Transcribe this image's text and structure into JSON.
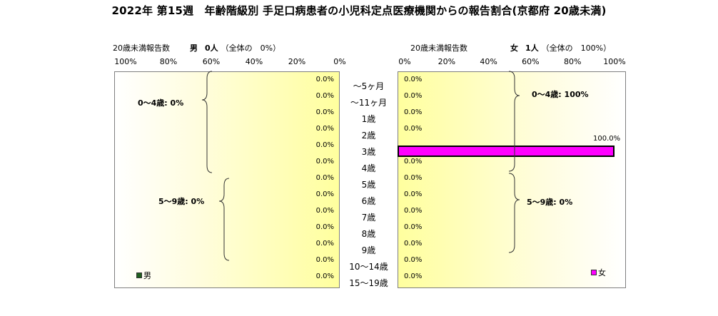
{
  "title": "2022年 第15週　年齢階級別 手足口病患者の小児科定点医療機関からの報告割合(京都府 20歳未満)",
  "left_header": {
    "reported_label": "20歳未満報告数",
    "sex": "男",
    "count": "0人",
    "share": "（全体の　0%）"
  },
  "right_header": {
    "reported_label": "20歳未満報告数",
    "sex": "女",
    "count": "1人",
    "share": "（全体の　100%）"
  },
  "left_ticks": [
    "100%",
    "80%",
    "60%",
    "40%",
    "20%",
    "0%"
  ],
  "right_ticks": [
    "0%",
    "20%",
    "40%",
    "60%",
    "80%",
    "100%"
  ],
  "groups": {
    "male_0_4": "0～4歳: 0%",
    "male_5_9": "5～9歳: 0%",
    "female_0_4": "0～4歳: 100%",
    "female_5_9": "5～9歳: 0%"
  },
  "legend": {
    "male": "男",
    "female": "女"
  },
  "colors": {
    "male": "#1f5f1f",
    "female": "#ff00ff"
  },
  "chart_data": {
    "type": "bar",
    "orientation": "horizontal",
    "layout": "population-pyramid",
    "title": "2022年 第15週　年齢階級別 手足口病患者の小児科定点医療機関からの報告割合(京都府 20歳未満)",
    "categories": [
      "～5ヶ月",
      "～11ヶ月",
      "1歳",
      "2歳",
      "3歳",
      "4歳",
      "5歳",
      "6歳",
      "7歳",
      "8歳",
      "9歳",
      "10～14歳",
      "15～19歳"
    ],
    "xlim": [
      0,
      100
    ],
    "series": [
      {
        "name": "男",
        "color": "#1f5f1f",
        "values": [
          0,
          0,
          0,
          0,
          0,
          0,
          0,
          0,
          0,
          0,
          0,
          0,
          0
        ],
        "labels": [
          "0.0%",
          "0.0%",
          "0.0%",
          "0.0%",
          "0.0%",
          "0.0%",
          "0.0%",
          "0.0%",
          "0.0%",
          "0.0%",
          "0.0%",
          "0.0%",
          "0.0%"
        ]
      },
      {
        "name": "女",
        "color": "#ff00ff",
        "values": [
          0,
          0,
          0,
          0,
          100,
          0,
          0,
          0,
          0,
          0,
          0,
          0,
          0
        ],
        "labels": [
          "0.0%",
          "0.0%",
          "0.0%",
          "0.0%",
          "100.0%",
          "0.0%",
          "0.0%",
          "0.0%",
          "0.0%",
          "0.0%",
          "0.0%",
          "0.0%",
          "0.0%"
        ]
      }
    ],
    "legend_position": "bottom-inside"
  }
}
